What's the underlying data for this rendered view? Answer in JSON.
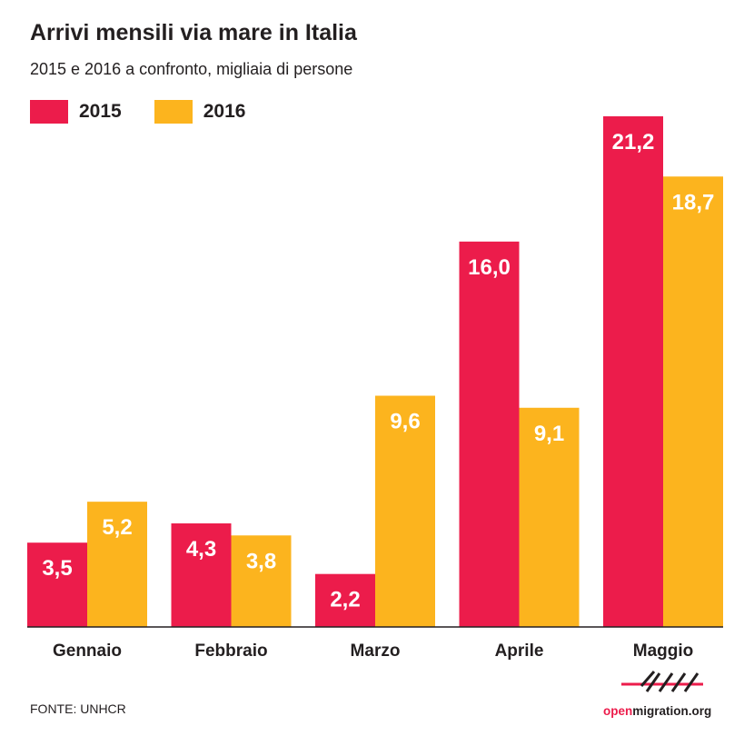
{
  "header": {
    "title": "Arrivi mensili via mare in Italia",
    "subtitle": "2015 e 2016 a confronto, migliaia di persone"
  },
  "colors": {
    "s2015": "#ec1c4b",
    "s2016": "#fcb41e",
    "text": "#231f20",
    "axis": "#231f20"
  },
  "legend": [
    {
      "label": "2015",
      "color": "#ec1c4b"
    },
    {
      "label": "2016",
      "color": "#fcb41e"
    }
  ],
  "chart_data": {
    "type": "bar",
    "title": "Arrivi mensili via mare in Italia",
    "subtitle": "2015 e 2016 a confronto, migliaia di persone",
    "categories": [
      "Gennaio",
      "Febbraio",
      "Marzo",
      "Aprile",
      "Maggio"
    ],
    "series": [
      {
        "name": "2015",
        "values": [
          3.5,
          4.3,
          2.2,
          16.0,
          21.2
        ],
        "labels": [
          "3,5",
          "4,3",
          "2,2",
          "16,0",
          "21,2"
        ]
      },
      {
        "name": "2016",
        "values": [
          5.2,
          3.8,
          9.6,
          9.1,
          18.7
        ],
        "labels": [
          "5,2",
          "3,8",
          "9,6",
          "9,1",
          "18,7"
        ]
      }
    ],
    "xlabel": "",
    "ylabel": "",
    "ylim": [
      0,
      21.2
    ],
    "grid": false,
    "legend_position": "top-left"
  },
  "footer": {
    "source": "FONTE: UNHCR",
    "logo_open": "open",
    "logo_migration": "migration.org"
  }
}
